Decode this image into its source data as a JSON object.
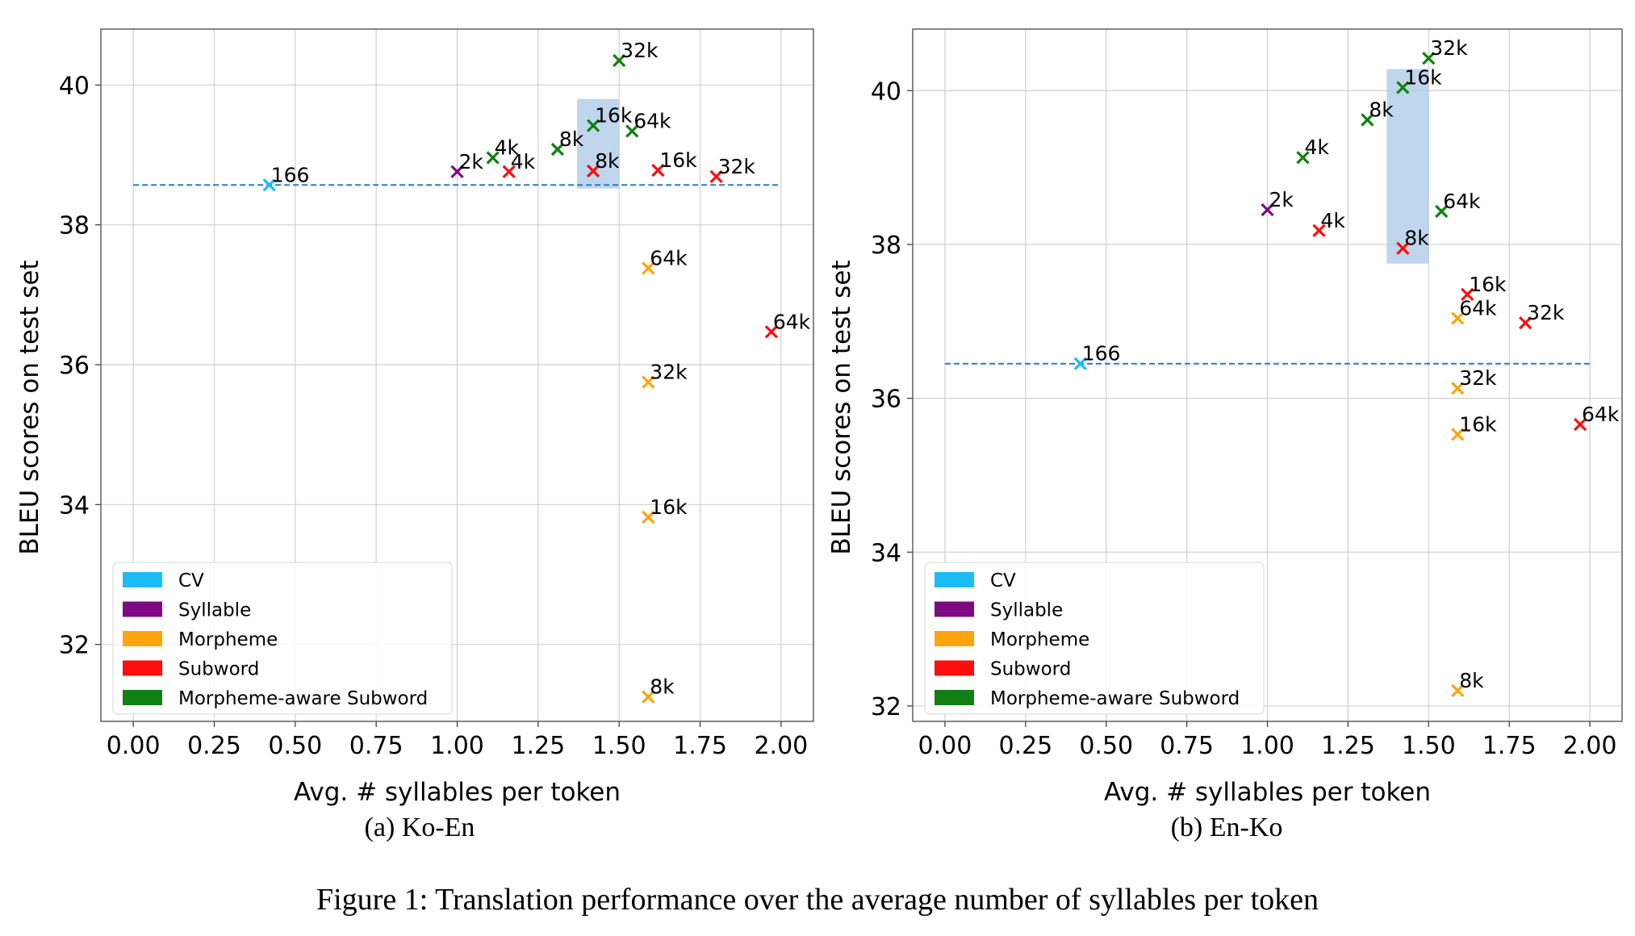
{
  "figure_caption": "Figure 1: Translation performance over the average number of syllables per token",
  "legend_entries": [
    {
      "name": "CV",
      "color": "#1cbcf7"
    },
    {
      "name": "Syllable",
      "color": "#7d0a82"
    },
    {
      "name": "Morpheme",
      "color": "#ffa40c"
    },
    {
      "name": "Subword",
      "color": "#ff0d0d"
    },
    {
      "name": "Morpheme-aware Subword",
      "color": "#118011"
    }
  ],
  "chart_data": [
    {
      "type": "scatter",
      "subcaption": "(a) Ko-En",
      "xlabel": "Avg. # syllables per token",
      "ylabel": "BLEU scores on test set",
      "xlim": [
        -0.1,
        2.1
      ],
      "ylim": [
        30.9,
        40.8
      ],
      "xticks": [
        "0.00",
        "0.25",
        "0.50",
        "0.75",
        "1.00",
        "1.25",
        "1.50",
        "1.75",
        "2.00"
      ],
      "yticks": [
        "32",
        "34",
        "36",
        "38",
        "40"
      ],
      "grid": true,
      "legend_position": "lower-left",
      "baseline_y": 38.57,
      "highlight": {
        "x": [
          1.37,
          1.5
        ],
        "y": [
          38.52,
          39.8
        ]
      },
      "series": [
        {
          "name": "CV",
          "color": "#1cbcf7",
          "points": [
            {
              "x": 0.42,
              "y": 38.57,
              "label": "166"
            }
          ]
        },
        {
          "name": "Syllable",
          "color": "#7d0a82",
          "points": [
            {
              "x": 1.0,
              "y": 38.76,
              "label": "2k"
            }
          ]
        },
        {
          "name": "Morpheme",
          "color": "#ffa40c",
          "points": [
            {
              "x": 1.59,
              "y": 37.38,
              "label": "64k"
            },
            {
              "x": 1.59,
              "y": 35.75,
              "label": "32k"
            },
            {
              "x": 1.59,
              "y": 33.82,
              "label": "16k"
            },
            {
              "x": 1.59,
              "y": 31.25,
              "label": "8k"
            }
          ]
        },
        {
          "name": "Subword",
          "color": "#ff0d0d",
          "points": [
            {
              "x": 1.16,
              "y": 38.76,
              "label": "4k"
            },
            {
              "x": 1.42,
              "y": 38.77,
              "label": "8k"
            },
            {
              "x": 1.62,
              "y": 38.78,
              "label": "16k"
            },
            {
              "x": 1.8,
              "y": 38.69,
              "label": "32k"
            },
            {
              "x": 1.97,
              "y": 36.47,
              "label": "64k"
            }
          ]
        },
        {
          "name": "Morpheme-aware Subword",
          "color": "#118011",
          "points": [
            {
              "x": 1.11,
              "y": 38.96,
              "label": "4k"
            },
            {
              "x": 1.31,
              "y": 39.08,
              "label": "8k"
            },
            {
              "x": 1.42,
              "y": 39.42,
              "label": "16k"
            },
            {
              "x": 1.5,
              "y": 40.35,
              "label": "32k"
            },
            {
              "x": 1.54,
              "y": 39.34,
              "label": "64k"
            }
          ]
        }
      ]
    },
    {
      "type": "scatter",
      "subcaption": "(b) En-Ko",
      "xlabel": "Avg. # syllables per token",
      "ylabel": "BLEU scores on test set",
      "xlim": [
        -0.1,
        2.1
      ],
      "ylim": [
        31.8,
        40.8
      ],
      "xticks": [
        "0.00",
        "0.25",
        "0.50",
        "0.75",
        "1.00",
        "1.25",
        "1.50",
        "1.75",
        "2.00"
      ],
      "yticks": [
        "32",
        "34",
        "36",
        "38",
        "40"
      ],
      "grid": true,
      "legend_position": "lower-left",
      "baseline_y": 36.45,
      "highlight": {
        "x": [
          1.37,
          1.5
        ],
        "y": [
          37.75,
          40.28
        ]
      },
      "series": [
        {
          "name": "CV",
          "color": "#1cbcf7",
          "points": [
            {
              "x": 0.42,
              "y": 36.45,
              "label": "166"
            }
          ]
        },
        {
          "name": "Syllable",
          "color": "#7d0a82",
          "points": [
            {
              "x": 1.0,
              "y": 38.45,
              "label": "2k"
            }
          ]
        },
        {
          "name": "Morpheme",
          "color": "#ffa40c",
          "points": [
            {
              "x": 1.59,
              "y": 37.04,
              "label": "64k"
            },
            {
              "x": 1.59,
              "y": 36.13,
              "label": "32k"
            },
            {
              "x": 1.59,
              "y": 35.53,
              "label": "16k"
            },
            {
              "x": 1.59,
              "y": 32.2,
              "label": "8k"
            }
          ]
        },
        {
          "name": "Subword",
          "color": "#ff0d0d",
          "points": [
            {
              "x": 1.16,
              "y": 38.18,
              "label": "4k"
            },
            {
              "x": 1.42,
              "y": 37.95,
              "label": "8k"
            },
            {
              "x": 1.62,
              "y": 37.35,
              "label": "16k"
            },
            {
              "x": 1.8,
              "y": 36.98,
              "label": "32k"
            },
            {
              "x": 1.97,
              "y": 35.66,
              "label": "64k"
            }
          ]
        },
        {
          "name": "Morpheme-aware Subword",
          "color": "#118011",
          "points": [
            {
              "x": 1.11,
              "y": 39.13,
              "label": "4k"
            },
            {
              "x": 1.31,
              "y": 39.62,
              "label": "8k"
            },
            {
              "x": 1.42,
              "y": 40.04,
              "label": "16k"
            },
            {
              "x": 1.5,
              "y": 40.42,
              "label": "32k"
            },
            {
              "x": 1.54,
              "y": 38.43,
              "label": "64k"
            }
          ]
        }
      ]
    }
  ]
}
